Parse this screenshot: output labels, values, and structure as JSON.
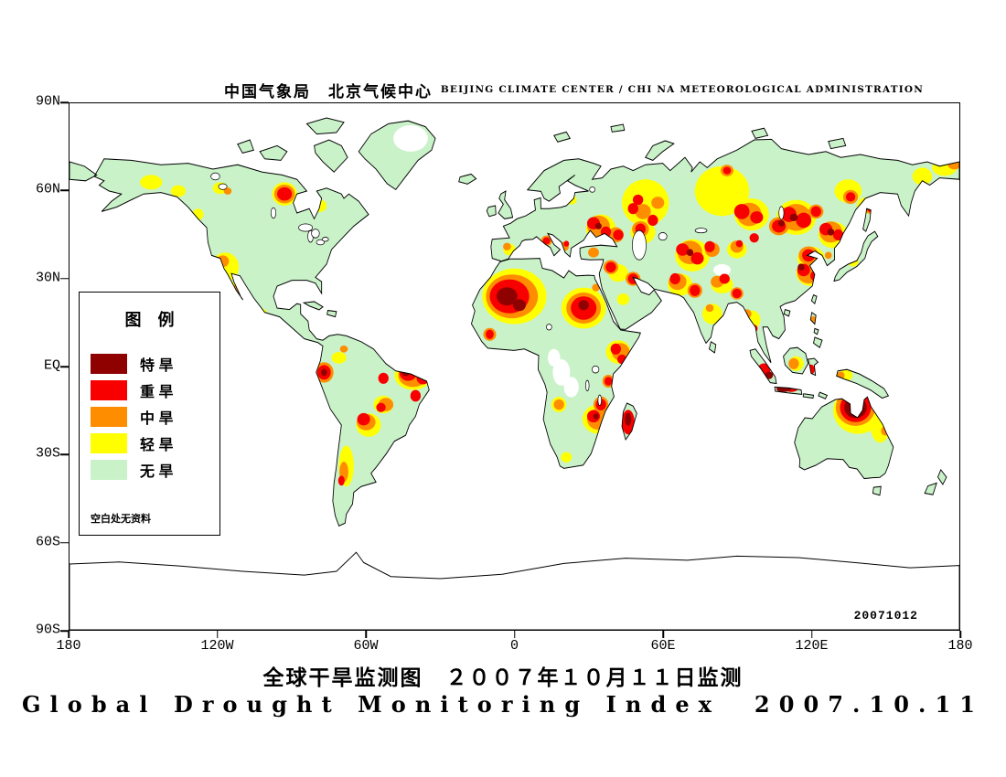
{
  "header": {
    "title_cn": "中国气象局　北京气候中心",
    "title_en": "BEIJING CLIMATE CENTER / CHI NA METEOROLOGICAL ADMINISTRATION"
  },
  "map": {
    "date_stamp": "20071012",
    "lat_ticks": [
      "90N",
      "60N",
      "30N",
      "EQ",
      "30S",
      "60S",
      "90S"
    ],
    "lon_ticks": [
      "180",
      "120W",
      "60W",
      "0",
      "60E",
      "120E",
      "180"
    ],
    "land_color": "#c9f2c9",
    "level_colors": {
      "E": "#8f0000",
      "S": "#f80000",
      "M": "#ff8d00",
      "L": "#ffff00",
      "N": "#ffffff"
    },
    "drought_spots": [
      [
        "N",
        138,
        12,
        7,
        4.5
      ],
      [
        "N",
        196,
        87,
        2.5,
        3
      ],
      [
        "N",
        199,
        92,
        3.5,
        4.5
      ],
      [
        "N",
        203,
        97,
        3,
        3.5
      ],
      [
        "N",
        264,
        57,
        3.5,
        2
      ],
      [
        "L",
        33,
        27,
        4.5,
        2.5
      ],
      [
        "L",
        44,
        30,
        3,
        2
      ],
      [
        "L",
        61,
        29,
        3,
        2
      ],
      [
        "L",
        87,
        31,
        5,
        4
      ],
      [
        "L",
        101,
        35,
        3,
        2.2
      ],
      [
        "L",
        52,
        38,
        2.2,
        2
      ],
      [
        "L",
        63,
        56,
        5.5,
        5
      ],
      [
        "L",
        68,
        64,
        4,
        3.5
      ],
      [
        "L",
        77,
        72,
        3,
        2
      ],
      [
        "L",
        109,
        87,
        3,
        2
      ],
      [
        "L",
        139,
        93,
        7.5,
        5
      ],
      [
        "L",
        127,
        103,
        4,
        3
      ],
      [
        "L",
        121,
        110,
        5,
        4
      ],
      [
        "L",
        112,
        124,
        3,
        7
      ],
      [
        "L",
        180,
        66,
        13,
        9.5
      ],
      [
        "L",
        208,
        70,
        9,
        7
      ],
      [
        "L",
        222,
        85,
        5,
        4
      ],
      [
        "L",
        214,
        108,
        6.5,
        5
      ],
      [
        "L",
        198,
        103,
        3,
        2.6
      ],
      [
        "L",
        201,
        121,
        2.2,
        1.8
      ],
      [
        "L",
        178,
        50,
        2.5,
        2
      ],
      [
        "L",
        215,
        43,
        6,
        5
      ],
      [
        "L",
        203,
        33,
        2.2,
        1.6
      ],
      [
        "L",
        233,
        34,
        9.5,
        8
      ],
      [
        "L",
        232,
        44,
        5,
        4
      ],
      [
        "L",
        252,
        52,
        7,
        5.5
      ],
      [
        "L",
        264,
        30,
        11,
        8.5
      ],
      [
        "L",
        276,
        38,
        7,
        5.5
      ],
      [
        "L",
        294,
        39,
        8,
        6
      ],
      [
        "L",
        315,
        30,
        5.5,
        4
      ],
      [
        "L",
        322,
        35,
        3.5,
        2.8
      ],
      [
        "L",
        345,
        25,
        4,
        3
      ],
      [
        "L",
        354,
        22,
        5,
        2.8
      ],
      [
        "L",
        247,
        62,
        5,
        3.8
      ],
      [
        "L",
        264,
        62,
        4.5,
        3
      ],
      [
        "L",
        260,
        72,
        4,
        3.5
      ],
      [
        "L",
        270,
        50,
        4,
        3
      ],
      [
        "L",
        309,
        45,
        6,
        4.5
      ],
      [
        "L",
        300,
        53,
        5.5,
        4
      ],
      [
        "L",
        300,
        58,
        6,
        4.5
      ],
      [
        "L",
        276,
        74,
        3.5,
        3.2
      ],
      [
        "L",
        294,
        89,
        3,
        2.5
      ],
      [
        "L",
        314,
        93,
        2.8,
        2
      ],
      [
        "L",
        319,
        105,
        10,
        8
      ],
      [
        "L",
        328,
        110,
        4,
        6
      ],
      [
        "L",
        317,
        54,
        2.2,
        1.8
      ],
      [
        "L",
        224,
        67,
        2.5,
        2
      ],
      [
        "L",
        222,
        58,
        4,
        3
      ],
      [
        "M",
        64,
        30,
        1.6,
        1.2
      ],
      [
        "M",
        87,
        31,
        4.2,
        3.2
      ],
      [
        "M",
        62,
        54,
        2.5,
        2
      ],
      [
        "M",
        68,
        64,
        2.5,
        2
      ],
      [
        "M",
        103,
        92,
        3.8,
        3.5
      ],
      [
        "M",
        139,
        93,
        6,
        4
      ],
      [
        "M",
        128,
        103,
        3,
        2.3
      ],
      [
        "M",
        120,
        109,
        3.8,
        2.8
      ],
      [
        "M",
        111,
        126,
        1.8,
        3.5
      ],
      [
        "M",
        179,
        66,
        10.5,
        7.5
      ],
      [
        "M",
        208,
        70,
        7,
        5.3
      ],
      [
        "M",
        213,
        63,
        1.6,
        1.3
      ],
      [
        "M",
        170,
        79,
        2.6,
        2.2
      ],
      [
        "M",
        223,
        85,
        3.6,
        3
      ],
      [
        "M",
        218,
        95,
        2.4,
        2.2
      ],
      [
        "M",
        215,
        103,
        3,
        2.8
      ],
      [
        "M",
        214,
        108,
        4.6,
        3.6
      ],
      [
        "M",
        198,
        103,
        2.1,
        1.8
      ],
      [
        "M",
        177,
        49,
        1.6,
        1.3
      ],
      [
        "M",
        193,
        47,
        2.2,
        1.8
      ],
      [
        "M",
        200,
        49,
        2,
        1.6
      ],
      [
        "M",
        214,
        42,
        4.6,
        3.6
      ],
      [
        "M",
        221,
        45,
        3.2,
        2.6
      ],
      [
        "M",
        232,
        37,
        3.2,
        2.6
      ],
      [
        "M",
        238,
        34,
        2.6,
        2.1
      ],
      [
        "M",
        231,
        43,
        3.4,
        2.7
      ],
      [
        "M",
        251,
        51,
        5,
        4
      ],
      [
        "M",
        260,
        50,
        3,
        2.5
      ],
      [
        "M",
        266,
        23,
        2.6,
        2
      ],
      [
        "M",
        275,
        38,
        5,
        4
      ],
      [
        "M",
        294,
        39,
        6,
        4.6
      ],
      [
        "M",
        302,
        37,
        3,
        2.4
      ],
      [
        "M",
        316,
        32,
        3,
        2.4
      ],
      [
        "M",
        324,
        36,
        2.2,
        1.8
      ],
      [
        "M",
        358,
        21,
        2.6,
        1.6
      ],
      [
        "M",
        212,
        51,
        2.2,
        1.7
      ],
      [
        "M",
        219,
        56,
        3,
        2.4
      ],
      [
        "M",
        228,
        60,
        3,
        2.4
      ],
      [
        "M",
        246,
        61,
        3.6,
        2.8
      ],
      [
        "M",
        253,
        64,
        3,
        2.5
      ],
      [
        "M",
        262,
        61,
        2.6,
        2
      ],
      [
        "M",
        259,
        70,
        1.6,
        1.3
      ],
      [
        "M",
        270,
        65,
        2.6,
        2.1
      ],
      [
        "M",
        270,
        49,
        2.6,
        2.1
      ],
      [
        "M",
        287,
        42,
        4,
        3.1
      ],
      [
        "M",
        308,
        44,
        4.6,
        3.6
      ],
      [
        "M",
        299,
        52,
        4,
        3.1
      ],
      [
        "M",
        299,
        58,
        4.6,
        3.6
      ],
      [
        "M",
        306,
        61,
        2.8,
        2.2
      ],
      [
        "M",
        307,
        52,
        1.4,
        1.2
      ],
      [
        "M",
        318,
        53,
        1.2,
        1
      ],
      [
        "M",
        274,
        72,
        1.9,
        1.6
      ],
      [
        "M",
        293,
        89,
        2.1,
        1.9
      ],
      [
        "M",
        312,
        93,
        1.6,
        1.3
      ],
      [
        "M",
        318,
        104,
        8,
        6.3
      ],
      [
        "M",
        330,
        112,
        1.7,
        1.6
      ],
      [
        "M",
        111,
        84,
        1.6,
        1.2
      ],
      [
        "M",
        301,
        74,
        1.4,
        1.2
      ],
      [
        "S",
        87,
        31,
        3,
        2.3
      ],
      [
        "S",
        58,
        54,
        1.6,
        1.3
      ],
      [
        "S",
        69,
        66,
        1.6,
        1.3
      ],
      [
        "S",
        103,
        92,
        2.7,
        2.5
      ],
      [
        "S",
        127,
        94,
        2.1,
        1.9
      ],
      [
        "S",
        137,
        92,
        3.6,
        2.9
      ],
      [
        "S",
        143,
        94,
        2.6,
        2.1
      ],
      [
        "S",
        140,
        100,
        2.1,
        2
      ],
      [
        "S",
        126,
        104,
        1.9,
        1.6
      ],
      [
        "S",
        119,
        108,
        2.6,
        2.1
      ],
      [
        "S",
        110,
        129,
        1.3,
        1.7
      ],
      [
        "S",
        178,
        66,
        8,
        5.8
      ],
      [
        "S",
        208,
        70,
        5.2,
        4
      ],
      [
        "S",
        170,
        79,
        1.6,
        1.6
      ],
      [
        "S",
        221,
        84,
        2.1,
        1.9
      ],
      [
        "S",
        223.5,
        87.5,
        1.9,
        1.6
      ],
      [
        "S",
        218,
        95,
        1.6,
        1.5
      ],
      [
        "S",
        215,
        103,
        2.1,
        2
      ],
      [
        "S",
        212,
        107,
        2.6,
        2.1
      ],
      [
        "S",
        217,
        110,
        2.1,
        1.9
      ],
      [
        "S",
        226,
        109,
        2.6,
        4.2
      ],
      [
        "S",
        193,
        47,
        1.5,
        1.2
      ],
      [
        "S",
        201,
        48,
        1.1,
        1
      ],
      [
        "S",
        212,
        41,
        2.6,
        2.1
      ],
      [
        "S",
        217,
        44,
        2.1,
        1.9
      ],
      [
        "S",
        222,
        45,
        2.1,
        1.8
      ],
      [
        "S",
        228,
        36,
        2.1,
        1.9
      ],
      [
        "S",
        236,
        40,
        2.1,
        1.9
      ],
      [
        "S",
        231,
        43,
        2.1,
        1.9
      ],
      [
        "S",
        230,
        33,
        2.1,
        1.8
      ],
      [
        "S",
        248,
        50,
        2.6,
        2.1
      ],
      [
        "S",
        254,
        53,
        2.6,
        2.1
      ],
      [
        "S",
        259,
        49,
        2.1,
        1.9
      ],
      [
        "S",
        266,
        23,
        1.6,
        1.3
      ],
      [
        "S",
        272,
        37,
        3.1,
        2.6
      ],
      [
        "S",
        278,
        39,
        2.6,
        2.1
      ],
      [
        "S",
        291,
        38,
        3.1,
        2.6
      ],
      [
        "S",
        297,
        40,
        3.1,
        2.6
      ],
      [
        "S",
        302,
        37,
        2.1,
        1.8
      ],
      [
        "S",
        316,
        32,
        1.9,
        1.6
      ],
      [
        "S",
        324,
        36,
        1.4,
        1.2
      ],
      [
        "S",
        219,
        56,
        2.1,
        1.8
      ],
      [
        "S",
        228,
        60,
        2.1,
        1.8
      ],
      [
        "S",
        245,
        60,
        2.1,
        1.9
      ],
      [
        "S",
        253,
        64,
        2.1,
        1.9
      ],
      [
        "S",
        265,
        60,
        2.1,
        1.7
      ],
      [
        "S",
        270,
        65,
        1.9,
        1.6
      ],
      [
        "S",
        277,
        46,
        1.9,
        1.6
      ],
      [
        "S",
        271,
        48,
        1.4,
        1.2
      ],
      [
        "S",
        287,
        42,
        2.8,
        2.2
      ],
      [
        "S",
        306,
        43,
        2.6,
        2.1
      ],
      [
        "S",
        311,
        45,
        2.1,
        1.9
      ],
      [
        "S",
        299,
        52,
        2.6,
        2.1
      ],
      [
        "S",
        297,
        57,
        2.6,
        2.1
      ],
      [
        "S",
        302,
        59,
        2.3,
        1.9
      ],
      [
        "S",
        306,
        61,
        1.9,
        1.6
      ],
      [
        "S",
        277,
        77,
        1.4,
        1.3
      ],
      [
        "S",
        281,
        91,
        2.6,
        2.1
      ],
      [
        "S",
        292,
        97.6,
        2.6,
        1.1
      ],
      [
        "S",
        300,
        91,
        1.5,
        1.7
      ],
      [
        "S",
        318,
        104,
        6.3,
        5
      ],
      [
        "E",
        177,
        66,
        4.2,
        3.1
      ],
      [
        "E",
        182,
        69,
        2.6,
        2
      ],
      [
        "E",
        208,
        69,
        2.1,
        1.7
      ],
      [
        "E",
        136,
        92,
        1.6,
        1.3
      ],
      [
        "E",
        103,
        92,
        1.2,
        1.2
      ],
      [
        "E",
        226,
        108,
        1.3,
        2.2
      ],
      [
        "E",
        214,
        42,
        1.3,
        1.1
      ],
      [
        "E",
        251,
        51,
        1.4,
        1.2
      ],
      [
        "E",
        293,
        39,
        1.6,
        1.3
      ],
      [
        "E",
        288,
        41,
        1.3,
        1.1
      ],
      [
        "E",
        308,
        44,
        1.4,
        1.2
      ],
      [
        "E",
        296,
        56,
        1.4,
        1.2
      ],
      [
        "E",
        283,
        93,
        1.6,
        1.3
      ],
      [
        "E",
        289,
        97.6,
        3,
        1.1
      ],
      [
        "E",
        318,
        104,
        4.6,
        3.6
      ],
      [
        "E",
        213,
        107,
        1.1,
        1
      ]
    ]
  },
  "legend": {
    "title": "图　例",
    "items": [
      {
        "label": "特 旱",
        "level": "E",
        "color": "#8f0000"
      },
      {
        "label": "重 旱",
        "level": "S",
        "color": "#f80000"
      },
      {
        "label": "中 旱",
        "level": "M",
        "color": "#ff8d00"
      },
      {
        "label": "轻 旱",
        "level": "L",
        "color": "#ffff00"
      },
      {
        "label": "无 旱",
        "level": "NONE",
        "color": "#c9f2c9"
      }
    ],
    "note": "空白处无资料"
  },
  "footer": {
    "title_cn": "全球干旱监测图　２００７年１０月１１日监测",
    "title_en": "Global Drought Monitoring Index  2007.10.11"
  }
}
